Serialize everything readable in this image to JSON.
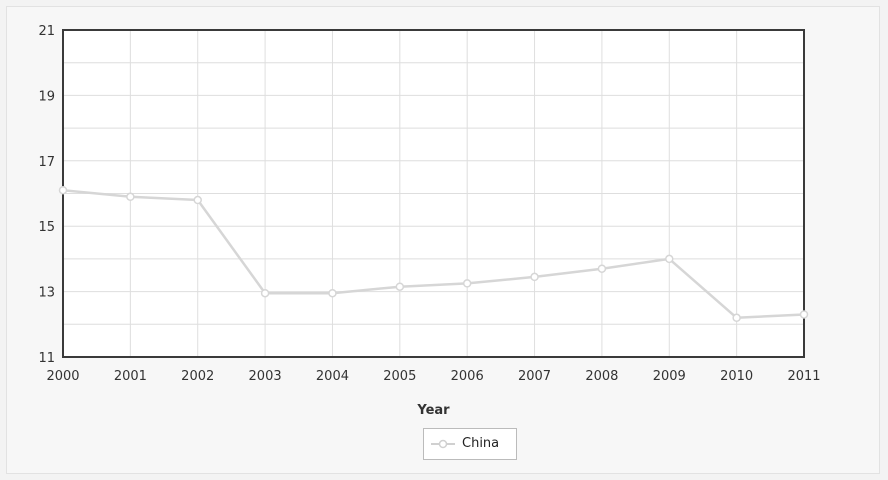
{
  "chart_data": {
    "type": "line",
    "title": "",
    "xlabel": "Year",
    "ylabel": "",
    "x": [
      "2000",
      "2001",
      "2002",
      "2003",
      "2004",
      "2005",
      "2006",
      "2007",
      "2008",
      "2009",
      "2010",
      "2011"
    ],
    "ylim": [
      11,
      21
    ],
    "yticks": [
      "11",
      "13",
      "15",
      "17",
      "19",
      "21"
    ],
    "grid": true,
    "legend_position": "bottom-center",
    "series": [
      {
        "name": "China",
        "color": "#d6d6d6",
        "values": [
          16.1,
          15.9,
          15.8,
          12.95,
          12.95,
          13.15,
          13.25,
          13.45,
          13.7,
          14.0,
          12.2,
          12.3
        ]
      }
    ]
  }
}
